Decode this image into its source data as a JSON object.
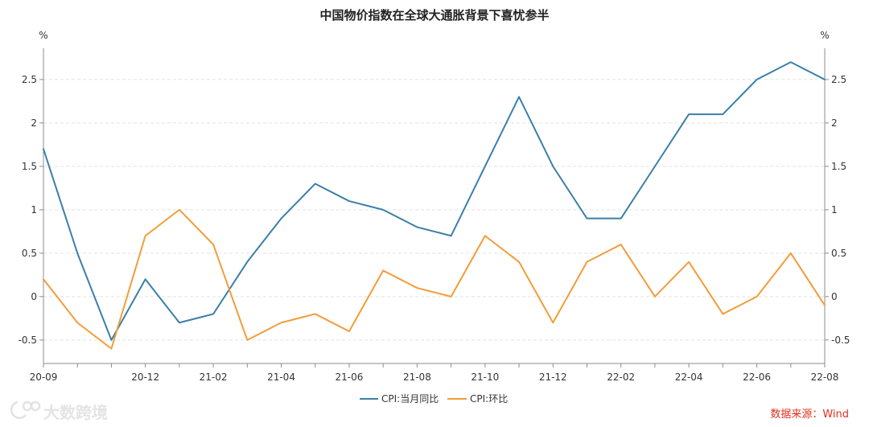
{
  "chart_data": {
    "type": "line",
    "title": "中国物价指数在全球大通胀背景下喜忧参半",
    "ylabel": "%",
    "ylabel_right": "%",
    "x": [
      "20-09",
      "20-10",
      "20-11",
      "20-12",
      "21-01",
      "21-02",
      "21-03",
      "21-04",
      "21-05",
      "21-06",
      "21-07",
      "21-08",
      "21-09",
      "21-10",
      "21-11",
      "21-12",
      "22-01",
      "22-02",
      "22-03",
      "22-04",
      "22-05",
      "22-06",
      "22-07",
      "22-08"
    ],
    "x_tick_labels": [
      "20-09",
      "20-12",
      "21-02",
      "21-04",
      "21-06",
      "21-08",
      "21-10",
      "21-12",
      "22-02",
      "22-04",
      "22-06",
      "22-08"
    ],
    "y_ticks": [
      -0.5,
      0,
      0.5,
      1,
      1.5,
      2,
      2.5
    ],
    "ylim": [
      -0.77,
      2.86
    ],
    "grid": true,
    "legend_position": "bottom",
    "series": [
      {
        "name": "CPI:当月同比",
        "color": "#3b7fa8",
        "values": [
          1.7,
          0.5,
          -0.5,
          0.2,
          -0.3,
          -0.2,
          0.4,
          0.9,
          1.3,
          1.1,
          1.0,
          0.8,
          0.7,
          1.5,
          2.3,
          1.5,
          0.9,
          0.9,
          1.5,
          2.1,
          2.1,
          2.5,
          2.7,
          2.5
        ]
      },
      {
        "name": "CPI:环比",
        "color": "#f39c3a",
        "values": [
          0.2,
          -0.3,
          -0.6,
          0.7,
          1.0,
          0.6,
          -0.5,
          -0.3,
          -0.2,
          -0.4,
          0.3,
          0.1,
          0.0,
          0.7,
          0.4,
          -0.3,
          0.4,
          0.6,
          0.0,
          0.4,
          -0.2,
          0.0,
          0.5,
          -0.1
        ]
      }
    ]
  },
  "source": "数据来源：Wind",
  "source_color": "#e0301e",
  "watermark": "大数跨境"
}
